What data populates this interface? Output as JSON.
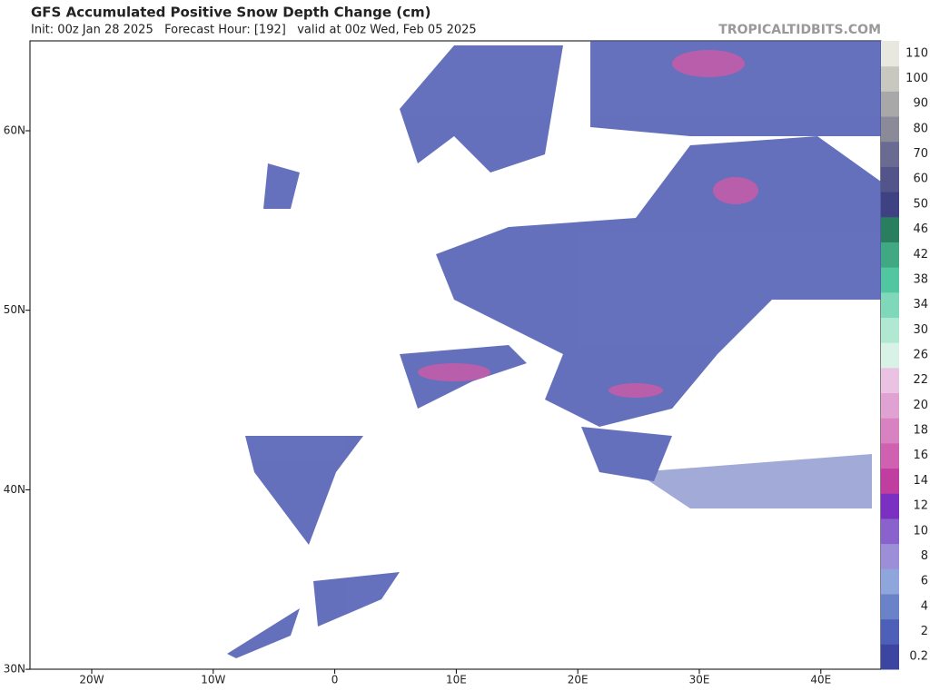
{
  "header": {
    "title": "GFS Accumulated Positive Snow Depth Change (cm)",
    "subtitle": "Init: 00z Jan 28 2025   Forecast Hour: [192]   valid at 00z Wed, Feb 05 2025",
    "brand": "TROPICALTIDBITS.COM"
  },
  "map": {
    "lat_labels": [
      "60N",
      "50N",
      "40N",
      "30N"
    ],
    "lon_labels": [
      "20W",
      "10W",
      "0",
      "10E",
      "20E",
      "30E",
      "40E"
    ]
  },
  "colorbar": [
    {
      "label": "0.2",
      "color": "#3c46a0"
    },
    {
      "label": "2",
      "color": "#4d5fb6"
    },
    {
      "label": "4",
      "color": "#6a82c8"
    },
    {
      "label": "6",
      "color": "#8ea6dc"
    },
    {
      "label": "8",
      "color": "#9c8fd8"
    },
    {
      "label": "10",
      "color": "#8a62cc"
    },
    {
      "label": "12",
      "color": "#7a30c0"
    },
    {
      "label": "14",
      "color": "#c03ea0"
    },
    {
      "label": "16",
      "color": "#d060b0"
    },
    {
      "label": "18",
      "color": "#d882c2"
    },
    {
      "label": "20",
      "color": "#e0a2d2"
    },
    {
      "label": "22",
      "color": "#eac2e2"
    },
    {
      "label": "26",
      "color": "#d8f2e8"
    },
    {
      "label": "30",
      "color": "#b0e8d2"
    },
    {
      "label": "34",
      "color": "#80d8ba"
    },
    {
      "label": "38",
      "color": "#52c6a0"
    },
    {
      "label": "42",
      "color": "#40a882"
    },
    {
      "label": "46",
      "color": "#2a7e60"
    },
    {
      "label": "50",
      "color": "#3e4282"
    },
    {
      "label": "60",
      "color": "#52548a"
    },
    {
      "label": "70",
      "color": "#6a6a92"
    },
    {
      "label": "80",
      "color": "#8a8a98"
    },
    {
      "label": "90",
      "color": "#a8a8a8"
    },
    {
      "label": "100",
      "color": "#c8c8c0"
    },
    {
      "label": "110",
      "color": "#e8e8e0"
    }
  ]
}
